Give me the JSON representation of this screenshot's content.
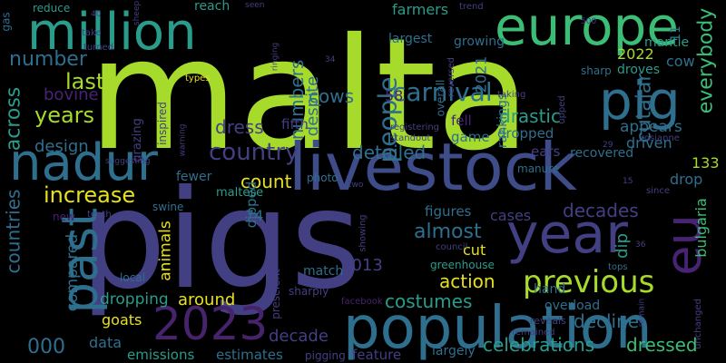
{
  "colors": {
    "background": "#000000",
    "lime": "#a6db2b",
    "green": "#3bbd75",
    "teal": "#2a9c8c",
    "blue": "#2e6f8e",
    "indigo": "#433f83",
    "purple": "#46236b",
    "yellow": "#e7e01f"
  },
  "words": [
    {
      "text": "malta",
      "color": "#a6db2b"
    },
    {
      "text": "pigs",
      "color": "#433f83"
    },
    {
      "text": "livestock",
      "color": "#3e4c8a"
    },
    {
      "text": "population",
      "color": "#2e6f8e"
    },
    {
      "text": "europe",
      "color": "#3bbd75"
    },
    {
      "text": "million",
      "color": "#2a9c8c"
    },
    {
      "text": "year",
      "color": "#433f83"
    },
    {
      "text": "pig",
      "color": "#2e6f8e"
    },
    {
      "text": "nadur",
      "color": "#2e6f8e"
    },
    {
      "text": "2023",
      "color": "#46236b"
    },
    {
      "text": "past",
      "color": "#2e6f8e"
    },
    {
      "text": "eu",
      "color": "#482374"
    },
    {
      "text": "previous",
      "color": "#a6db2b"
    },
    {
      "text": "carnival",
      "color": "#2e6f8e"
    },
    {
      "text": "people",
      "color": "#2e6f8e"
    },
    {
      "text": "cutajar",
      "color": "#2e6f8e"
    },
    {
      "text": "everybody",
      "color": "#3bbd75"
    },
    {
      "text": "country",
      "color": "#433f83"
    },
    {
      "text": "increase",
      "color": "#e7e01f"
    },
    {
      "text": "years",
      "color": "#a6db2b"
    },
    {
      "text": "last",
      "color": "#a6db2b"
    },
    {
      "text": "number",
      "color": "#2e6f8e"
    },
    {
      "text": "across",
      "color": "#2a9c8c"
    },
    {
      "text": "countries",
      "color": "#2e6f8e"
    },
    {
      "text": "almost",
      "color": "#2e6f8e"
    },
    {
      "text": "costumes",
      "color": "#2a9c8c"
    },
    {
      "text": "celebrations",
      "color": "#2a9c8c"
    },
    {
      "text": "dressed",
      "color": "#3bbd75"
    },
    {
      "text": "numbers",
      "color": "#2e6f8e"
    },
    {
      "text": "despite",
      "color": "#2e6f8e"
    },
    {
      "text": "cows",
      "color": "#2e6f8e"
    },
    {
      "text": "drastic",
      "color": "#2a9c8c"
    },
    {
      "text": "detailed",
      "color": "#2e6f8e"
    },
    {
      "text": "count",
      "color": "#e7e01f"
    },
    {
      "text": "dress",
      "color": "#433f83"
    },
    {
      "text": "decades",
      "color": "#433f83"
    },
    {
      "text": "decline",
      "color": "#2e6f8e"
    },
    {
      "text": "action",
      "color": "#e7e01f"
    },
    {
      "text": "around",
      "color": "#e7e01f"
    },
    {
      "text": "dropping",
      "color": "#2a9c8c"
    },
    {
      "text": "decade",
      "color": "#433f83"
    },
    {
      "text": "bulgaria",
      "color": "#3bbd75"
    },
    {
      "text": "design",
      "color": "#2e6f8e"
    },
    {
      "text": "bovine",
      "color": "#482374"
    },
    {
      "text": "000",
      "color": "#2e6f8e"
    },
    {
      "text": "data",
      "color": "#2e6f8e"
    },
    {
      "text": "emissions",
      "color": "#2a9c8c"
    },
    {
      "text": "estimates",
      "color": "#2e6f8e"
    },
    {
      "text": "feature",
      "color": "#433f83"
    },
    {
      "text": "largely",
      "color": "#2e6f8e"
    },
    {
      "text": "2013",
      "color": "#433f83"
    },
    {
      "text": "compared",
      "color": "#2e6f8e"
    },
    {
      "text": "animals",
      "color": "#e7e01f"
    },
    {
      "text": "goats",
      "color": "#e7e01f"
    },
    {
      "text": "cut",
      "color": "#e7e01f"
    },
    {
      "text": "cases",
      "color": "#433f83"
    },
    {
      "text": "figures",
      "color": "#2e6f8e"
    },
    {
      "text": "dip",
      "color": "#2a9c8c"
    },
    {
      "text": "drop",
      "color": "#2e6f8e"
    },
    {
      "text": "driven",
      "color": "#2e6f8e"
    },
    {
      "text": "appears",
      "color": "#2e6f8e"
    },
    {
      "text": "fewer",
      "color": "#2e6f8e"
    },
    {
      "text": "dipped",
      "color": "#2e6f8e"
    },
    {
      "text": "74",
      "color": "#2e6f8e"
    },
    {
      "text": "fifth",
      "color": "#433f83"
    },
    {
      "text": "58",
      "color": "#482374"
    },
    {
      "text": "fell",
      "color": "#482374"
    },
    {
      "text": "game",
      "color": "#2e6f8e"
    },
    {
      "text": "dropped",
      "color": "#2e6f8e"
    },
    {
      "text": "ears",
      "color": "#433f83"
    },
    {
      "text": "recovered",
      "color": "#2e6f8e"
    },
    {
      "text": "133",
      "color": "#a6db2b"
    },
    {
      "text": "cow",
      "color": "#2e6f8e"
    },
    {
      "text": "2022",
      "color": "#a6db2b"
    },
    {
      "text": "droves",
      "color": "#2a9c8c"
    },
    {
      "text": "mantle",
      "color": "#2a9c8c"
    },
    {
      "text": "2021",
      "color": "#2e6f8e"
    },
    {
      "text": "rankings",
      "color": "#2e6f8e"
    },
    {
      "text": "farmers",
      "color": "#2a9c8c"
    },
    {
      "text": "largest",
      "color": "#2e6f8e"
    },
    {
      "text": "growing",
      "color": "#2e6f8e"
    },
    {
      "text": "reach",
      "color": "#2a9c8c"
    },
    {
      "text": "reduce",
      "color": "#2a9c8c"
    },
    {
      "text": "gas",
      "color": "#2e6f8e"
    },
    {
      "text": "greenhouse",
      "color": "#2a9c8c"
    },
    {
      "text": "hand",
      "color": "#2e6f8e"
    },
    {
      "text": "match",
      "color": "#2e6f8e"
    },
    {
      "text": "overload",
      "color": "#2e6f8e"
    },
    {
      "text": "photo",
      "color": "#2e6f8e"
    },
    {
      "text": "maltese",
      "color": "#2a9c8c"
    },
    {
      "text": "manure",
      "color": "#2e6f8e"
    },
    {
      "text": "grazing",
      "color": "#433f83"
    },
    {
      "text": "inspired",
      "color": "#433f83"
    },
    {
      "text": "local",
      "color": "#2e6f8e"
    },
    {
      "text": "new",
      "color": "#482374"
    },
    {
      "text": "prescient",
      "color": "#433f83"
    },
    {
      "text": "sharply",
      "color": "#433f83"
    },
    {
      "text": "pigging",
      "color": "#433f83"
    },
    {
      "text": "swine",
      "color": "#2e6f8e"
    },
    {
      "text": "tenth",
      "color": "#433f83"
    },
    {
      "text": "council",
      "color": "#433f83"
    },
    {
      "text": "showing",
      "color": "#433f83"
    },
    {
      "text": "reveals",
      "color": "#433f83"
    },
    {
      "text": "remained",
      "color": "#433f83"
    },
    {
      "text": "facebook",
      "color": "#46236b"
    },
    {
      "text": "overall",
      "color": "#2e6f8e"
    },
    {
      "text": "registering",
      "color": "#433f83"
    },
    {
      "text": "standout",
      "color": "#433f83"
    },
    {
      "text": "reversed",
      "color": "#433f83"
    },
    {
      "text": "taking",
      "color": "#433f83"
    },
    {
      "text": "upped",
      "color": "#433f83"
    },
    {
      "text": "sharp",
      "color": "#2e6f8e"
    },
    {
      "text": "rosianne",
      "color": "#433f83"
    },
    {
      "text": "since",
      "color": "#433f83"
    },
    {
      "text": "tops",
      "color": "#2e6f8e"
    },
    {
      "text": "unchanged",
      "color": "#433f83"
    },
    {
      "text": "types",
      "color": "#e7e01f"
    },
    {
      "text": "turned",
      "color": "#433f83"
    },
    {
      "text": "take",
      "color": "#433f83"
    },
    {
      "text": "40",
      "color": "#433f83"
    },
    {
      "text": "sheep",
      "color": "#433f83"
    },
    {
      "text": "seen",
      "color": "#433f83"
    },
    {
      "text": "ringing",
      "color": "#433f83"
    },
    {
      "text": "trend",
      "color": "#433f83"
    },
    {
      "text": "500",
      "color": "#433f83"
    },
    {
      "text": "11",
      "color": "#2e6f8e"
    },
    {
      "text": "34",
      "color": "#433f83"
    },
    {
      "text": "warning",
      "color": "#433f83"
    },
    {
      "text": "suggesting",
      "color": "#433f83"
    },
    {
      "text": "two",
      "color": "#433f83"
    },
    {
      "text": "29",
      "color": "#433f83"
    },
    {
      "text": "15",
      "color": "#433f83"
    },
    {
      "text": "36",
      "color": "#433f83"
    },
    {
      "text": "remain",
      "color": "#433f83"
    }
  ]
}
